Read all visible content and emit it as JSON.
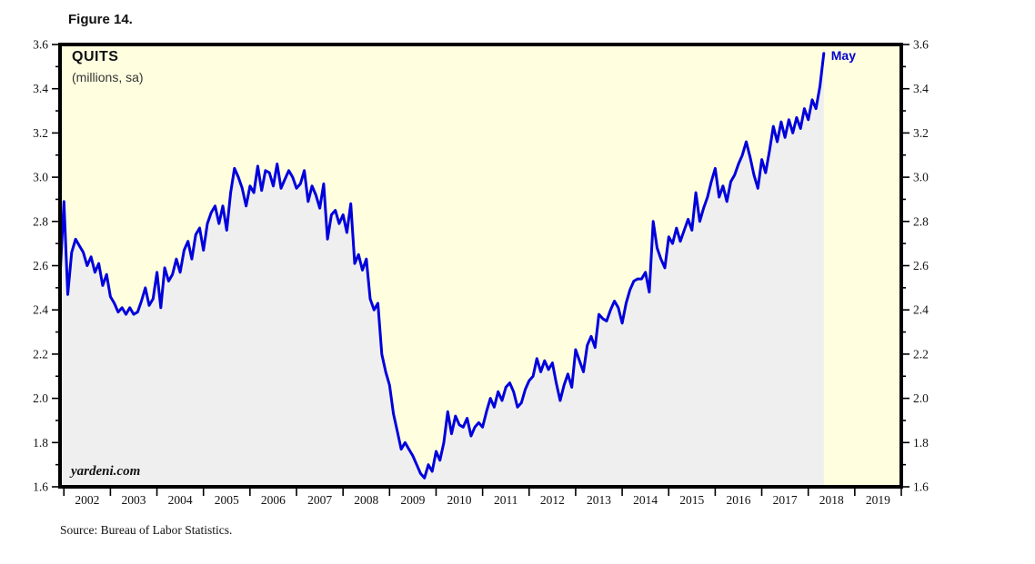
{
  "meta": {
    "figure_label": "Figure 14.",
    "source": "Source: Bureau of Labor Statistics."
  },
  "chart_data": {
    "type": "line",
    "title": "QUITS",
    "subtitle": "(millions, sa)",
    "watermark": "yardeni.com",
    "annotation": {
      "text": "May",
      "color": "#0000CD"
    },
    "frequency": "monthly",
    "start_period": "2001-12",
    "end_period": "2018-05",
    "x_domain": [
      2001.917,
      2020.0
    ],
    "y_domain": [
      1.6,
      3.6
    ],
    "ylim": [
      1.6,
      3.6
    ],
    "y_tick_labels": [
      "3.6",
      "3.4",
      "3.2",
      "3.0",
      "2.8",
      "2.6",
      "2.4",
      "2.2",
      "2.0",
      "1.8",
      "1.6"
    ],
    "y_minor_step": 0.1,
    "x_tick_labels": [
      "2002",
      "2003",
      "2004",
      "2005",
      "2006",
      "2007",
      "2008",
      "2009",
      "2010",
      "2011",
      "2012",
      "2013",
      "2014",
      "2015",
      "2016",
      "2017",
      "2018",
      "2019"
    ],
    "grid": false,
    "legend": "none",
    "plot_bg_color": "#FFFFE0",
    "area_fill_color": "#EFEFEF",
    "border_color": "#000000",
    "series": [
      {
        "name": "Quits (millions, sa)",
        "color": "#0000DD",
        "values": [
          2.55,
          2.89,
          2.47,
          2.66,
          2.72,
          2.69,
          2.66,
          2.6,
          2.64,
          2.57,
          2.61,
          2.51,
          2.56,
          2.46,
          2.43,
          2.39,
          2.41,
          2.38,
          2.41,
          2.38,
          2.39,
          2.44,
          2.5,
          2.42,
          2.45,
          2.57,
          2.41,
          2.59,
          2.53,
          2.56,
          2.63,
          2.57,
          2.67,
          2.71,
          2.63,
          2.74,
          2.77,
          2.67,
          2.79,
          2.84,
          2.87,
          2.79,
          2.87,
          2.76,
          2.93,
          3.04,
          3.0,
          2.95,
          2.87,
          2.96,
          2.93,
          3.05,
          2.94,
          3.03,
          3.02,
          2.96,
          3.06,
          2.95,
          2.99,
          3.03,
          3.0,
          2.95,
          2.97,
          3.03,
          2.89,
          2.96,
          2.92,
          2.86,
          2.97,
          2.72,
          2.83,
          2.85,
          2.79,
          2.83,
          2.75,
          2.88,
          2.61,
          2.65,
          2.58,
          2.63,
          2.45,
          2.4,
          2.43,
          2.2,
          2.12,
          2.06,
          1.93,
          1.85,
          1.77,
          1.8,
          1.77,
          1.74,
          1.7,
          1.66,
          1.64,
          1.7,
          1.67,
          1.76,
          1.72,
          1.8,
          1.94,
          1.84,
          1.92,
          1.88,
          1.87,
          1.91,
          1.83,
          1.87,
          1.89,
          1.87,
          1.94,
          2.0,
          1.96,
          2.03,
          1.99,
          2.05,
          2.07,
          2.03,
          1.96,
          1.98,
          2.04,
          2.08,
          2.1,
          2.18,
          2.12,
          2.17,
          2.13,
          2.16,
          2.07,
          1.99,
          2.06,
          2.11,
          2.05,
          2.22,
          2.17,
          2.12,
          2.24,
          2.28,
          2.23,
          2.38,
          2.36,
          2.35,
          2.4,
          2.44,
          2.41,
          2.34,
          2.43,
          2.49,
          2.53,
          2.54,
          2.54,
          2.57,
          2.48,
          2.8,
          2.68,
          2.63,
          2.59,
          2.73,
          2.7,
          2.77,
          2.71,
          2.76,
          2.81,
          2.76,
          2.93,
          2.8,
          2.86,
          2.91,
          2.98,
          3.04,
          2.91,
          2.96,
          2.89,
          2.98,
          3.01,
          3.06,
          3.1,
          3.16,
          3.09,
          3.01,
          2.95,
          3.08,
          3.02,
          3.12,
          3.23,
          3.16,
          3.25,
          3.18,
          3.26,
          3.2,
          3.27,
          3.22,
          3.31,
          3.26,
          3.35,
          3.31,
          3.41,
          3.56
        ]
      }
    ]
  }
}
